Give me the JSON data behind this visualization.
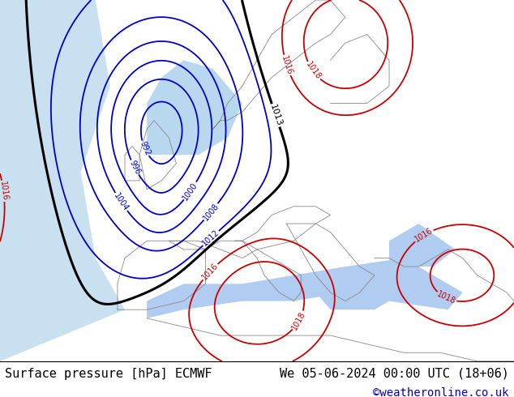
{
  "title_left": "Surface pressure [hPa] ECMWF",
  "title_right": "We 05-06-2024 00:00 UTC (18+06)",
  "credit": "©weatheronline.co.uk",
  "bg_color": "#b8d898",
  "footer_text_color": "#000000",
  "credit_color": "#0000cc",
  "font_size_footer": 11,
  "font_size_credit": 10,
  "map_xlim": [
    -25,
    45
  ],
  "map_ylim": [
    30,
    72
  ]
}
